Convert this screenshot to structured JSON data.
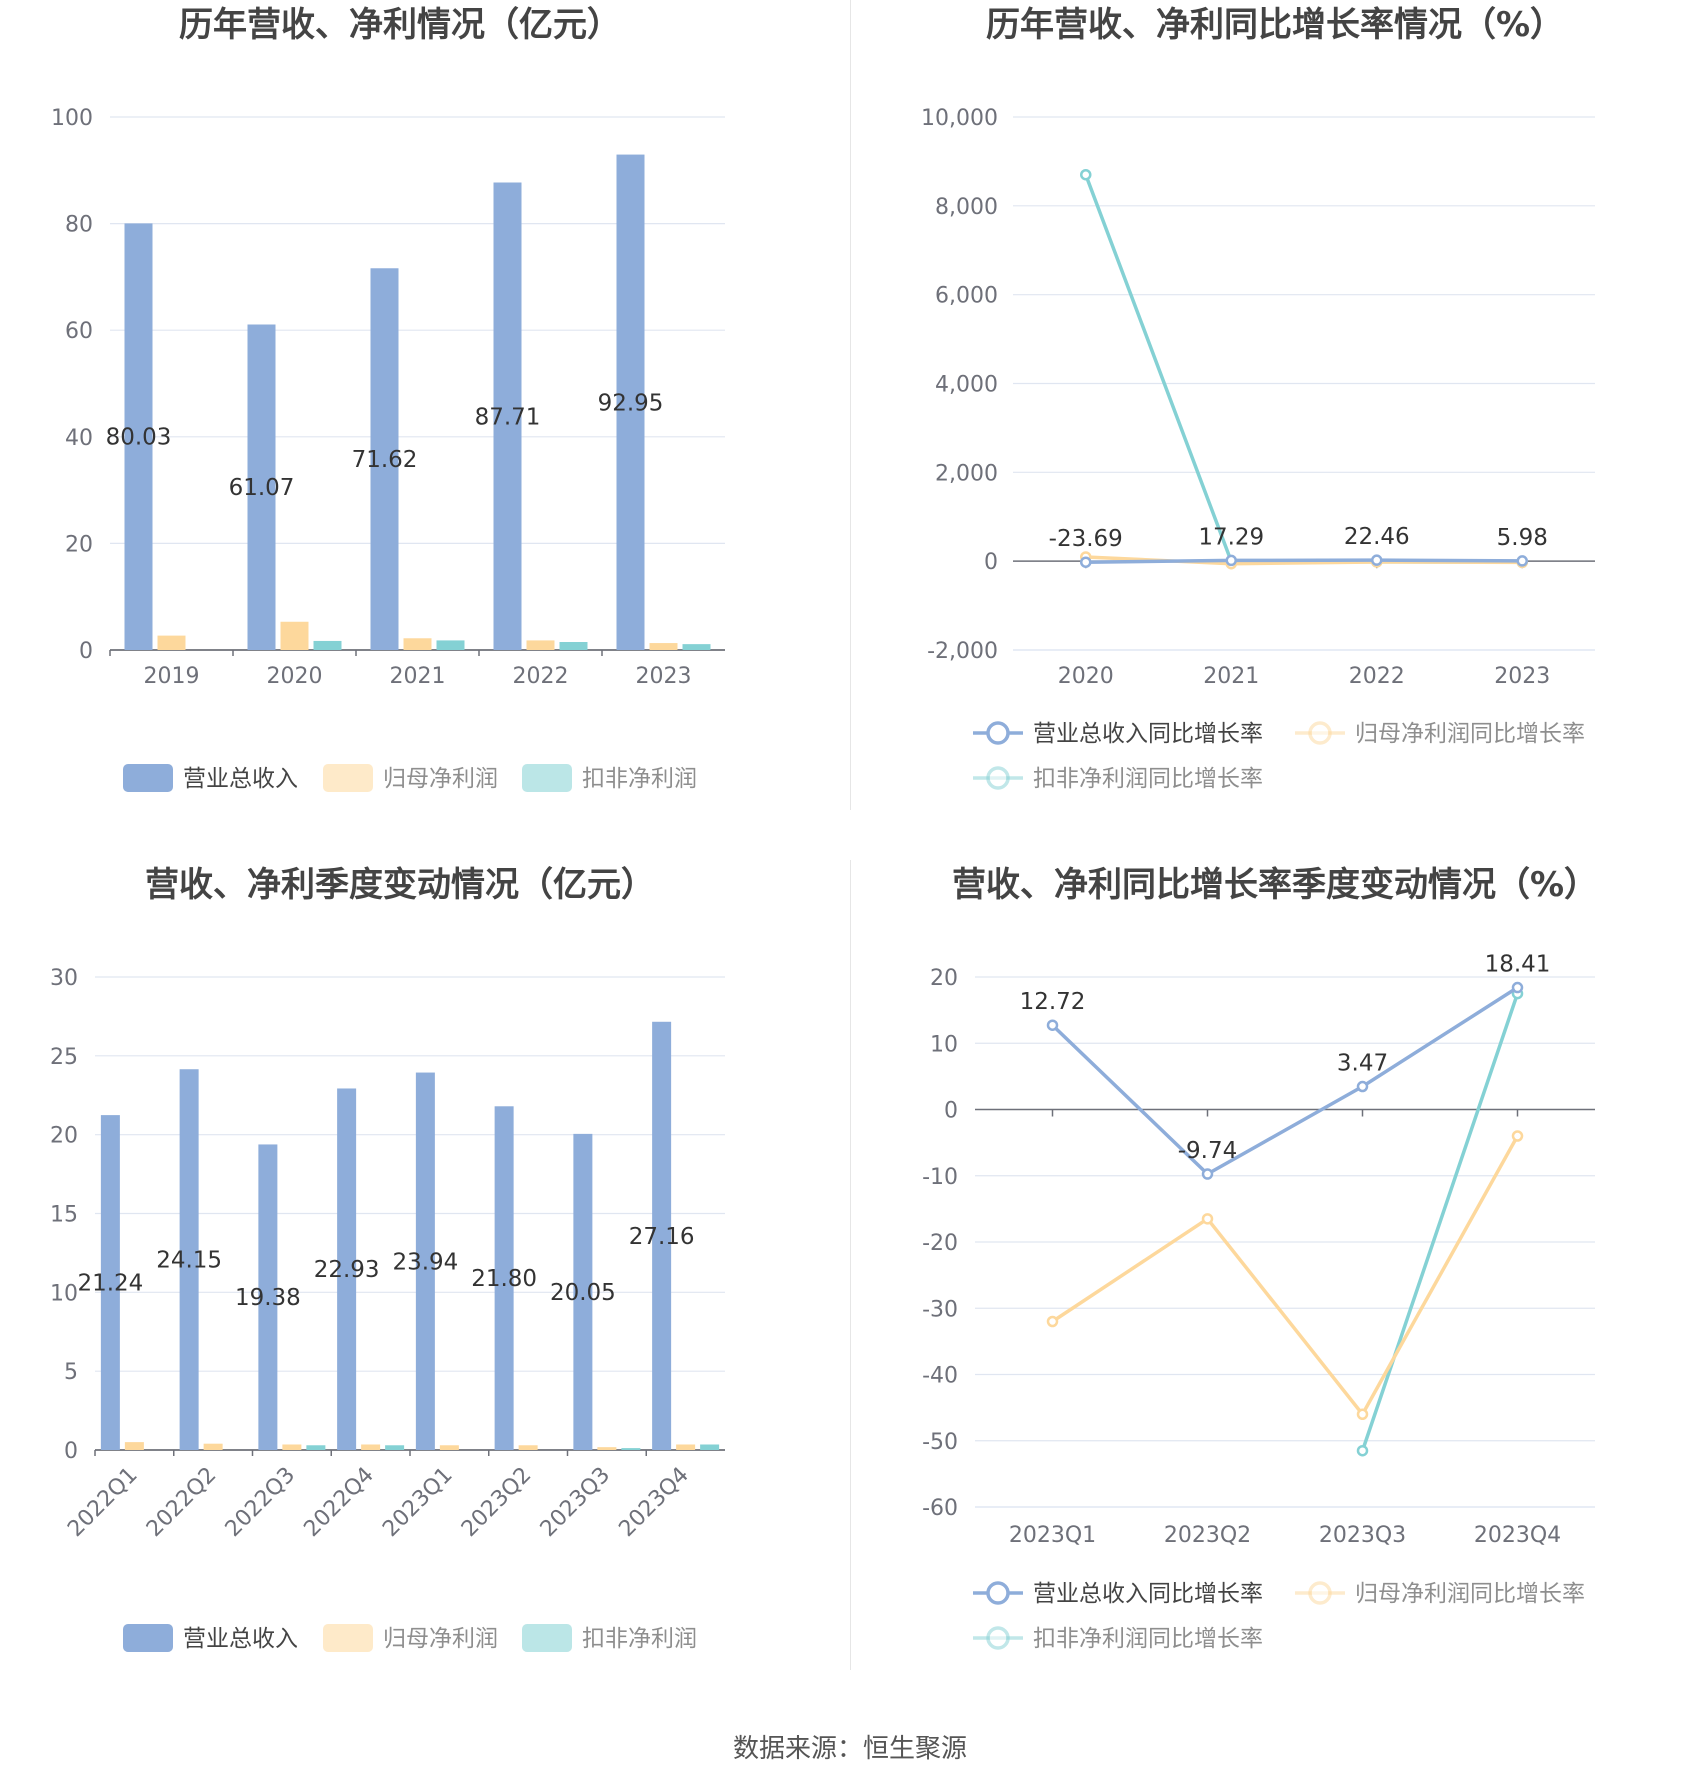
{
  "source": "数据来源：恒生聚源",
  "chart_data": [
    {
      "type": "bar",
      "title": "历年营收、净利情况（亿元）",
      "categories": [
        "2019",
        "2020",
        "2021",
        "2022",
        "2023"
      ],
      "ylim": [
        0,
        100
      ],
      "yticks": [
        0,
        20,
        40,
        60,
        80,
        100
      ],
      "ytick_labels": [
        "0",
        "20",
        "40",
        "60",
        "80",
        "100"
      ],
      "grid": true,
      "legend_position": "bottom",
      "series": [
        {
          "name": "营业总收入",
          "color": "#8eadda",
          "values": [
            80.03,
            61.07,
            71.62,
            87.71,
            92.95
          ],
          "labels": [
            "80.03",
            "61.07",
            "71.62",
            "87.71",
            "92.95"
          ]
        },
        {
          "name": "归母净利润",
          "color": "#fdd89c",
          "values": [
            2.7,
            5.3,
            2.2,
            1.8,
            1.3
          ]
        },
        {
          "name": "扣非净利润",
          "color": "#84d1d4",
          "values": [
            0.0,
            1.7,
            1.8,
            1.5,
            1.1
          ]
        }
      ]
    },
    {
      "type": "line",
      "title": "历年营收、净利同比增长率情况（%）",
      "categories": [
        "2020",
        "2021",
        "2022",
        "2023"
      ],
      "ylim": [
        -2000,
        10000
      ],
      "yticks": [
        -2000,
        0,
        2000,
        4000,
        6000,
        8000,
        10000
      ],
      "ytick_labels": [
        "-2,000",
        "0",
        "2,000",
        "4,000",
        "6,000",
        "8,000",
        "10,000"
      ],
      "grid": true,
      "legend_position": "bottom",
      "series": [
        {
          "name": "营业总收入同比增长率",
          "color": "#8eadda",
          "values": [
            -23.69,
            17.29,
            22.46,
            5.98
          ],
          "labels": [
            "-23.69",
            "17.29",
            "22.46",
            "5.98"
          ]
        },
        {
          "name": "归母净利润同比增长率",
          "color": "#fdd89c",
          "values": [
            95,
            -58,
            -18,
            -28
          ]
        },
        {
          "name": "扣非净利润同比增长率",
          "color": "#84d1d4",
          "values": [
            8700,
            -5,
            -15,
            -25
          ]
        }
      ]
    },
    {
      "type": "bar",
      "title": "营收、净利季度变动情况（亿元）",
      "categories": [
        "2022Q1",
        "2022Q2",
        "2022Q3",
        "2022Q4",
        "2023Q1",
        "2023Q2",
        "2023Q3",
        "2023Q4"
      ],
      "ylim": [
        0,
        30
      ],
      "yticks": [
        0,
        5,
        10,
        15,
        20,
        25,
        30
      ],
      "ytick_labels": [
        "0",
        "5",
        "10",
        "15",
        "20",
        "25",
        "30"
      ],
      "grid": true,
      "legend_position": "bottom",
      "series": [
        {
          "name": "营业总收入",
          "color": "#8eadda",
          "values": [
            21.24,
            24.15,
            19.38,
            22.93,
            23.94,
            21.8,
            20.05,
            27.16
          ],
          "labels": [
            "21.24",
            "24.15",
            "19.38",
            "22.93",
            "23.94",
            "21.80",
            "20.05",
            "27.16"
          ]
        },
        {
          "name": "归母净利润",
          "color": "#fdd89c",
          "values": [
            0.5,
            0.4,
            0.35,
            0.35,
            0.3,
            0.3,
            0.18,
            0.35
          ]
        },
        {
          "name": "扣非净利润",
          "color": "#84d1d4",
          "values": [
            0.0,
            0.0,
            0.3,
            0.3,
            0.0,
            0.0,
            0.12,
            0.35
          ]
        }
      ]
    },
    {
      "type": "line",
      "title": "营收、净利同比增长率季度变动情况（%）",
      "categories": [
        "2023Q1",
        "2023Q2",
        "2023Q3",
        "2023Q4"
      ],
      "ylim": [
        -60,
        20
      ],
      "yticks": [
        -60,
        -50,
        -40,
        -30,
        -20,
        -10,
        0,
        10,
        20
      ],
      "ytick_labels": [
        "-60",
        "-50",
        "-40",
        "-30",
        "-20",
        "-10",
        "0",
        "10",
        "20"
      ],
      "grid": true,
      "legend_position": "bottom",
      "series": [
        {
          "name": "营业总收入同比增长率",
          "color": "#8eadda",
          "values": [
            12.72,
            -9.74,
            3.47,
            18.41
          ],
          "labels": [
            "12.72",
            "-9.74",
            "3.47",
            "18.41"
          ]
        },
        {
          "name": "归母净利润同比增长率",
          "color": "#fdd89c",
          "values": [
            -32,
            -16.5,
            -46,
            -4
          ]
        },
        {
          "name": "扣非净利润同比增长率",
          "color": "#84d1d4",
          "values": [
            null,
            null,
            -51.5,
            17.5
          ]
        }
      ]
    }
  ]
}
